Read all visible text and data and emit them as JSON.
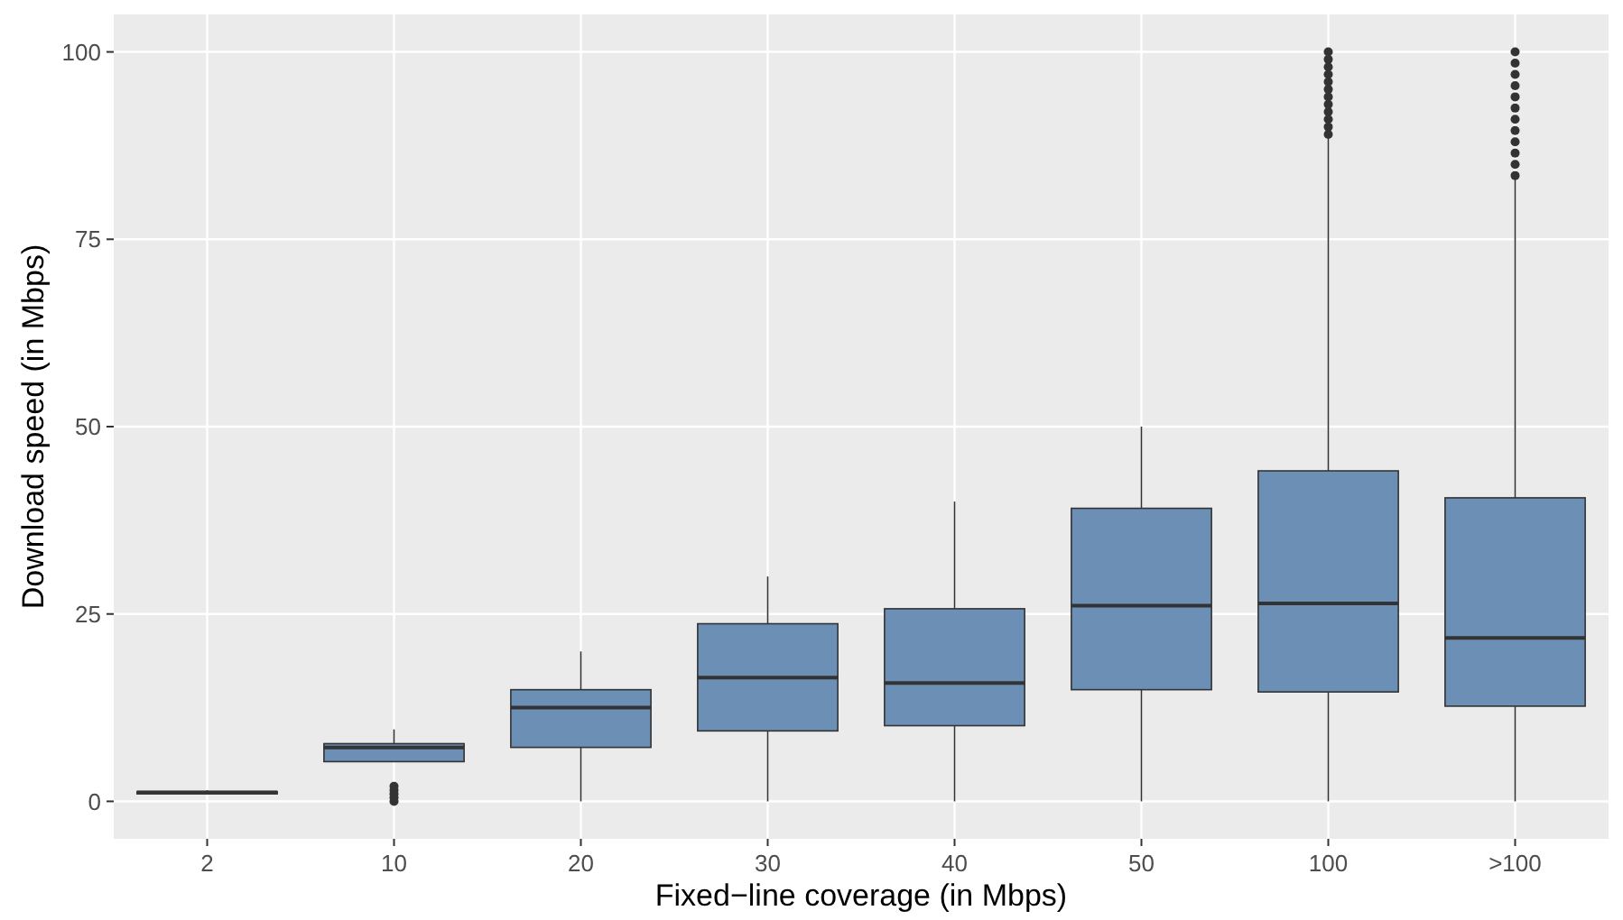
{
  "chart_data": {
    "type": "box",
    "xlabel": "Fixed−line coverage (in Mbps)",
    "ylabel": "Download speed (in Mbps)",
    "categories": [
      "2",
      "10",
      "20",
      "30",
      "40",
      "50",
      "100",
      ">100"
    ],
    "color": "#6b8fb5",
    "boxes": [
      {
        "low": 1,
        "q1": 1,
        "median": 1.2,
        "q3": 1.3,
        "high": 1.5
      },
      {
        "low": 5.3,
        "q1": 5.3,
        "median": 7.2,
        "q3": 7.7,
        "high": 9.6,
        "outliers": [
          0,
          0.5,
          1,
          1.5,
          2
        ]
      },
      {
        "low": 0,
        "q1": 7.2,
        "median": 12.5,
        "q3": 14.9,
        "high": 20
      },
      {
        "low": 0,
        "q1": 9.4,
        "median": 16.5,
        "q3": 23.7,
        "high": 30
      },
      {
        "low": 0,
        "q1": 10.1,
        "median": 15.8,
        "q3": 25.7,
        "high": 40
      },
      {
        "low": 0,
        "q1": 14.9,
        "median": 26.1,
        "q3": 39.1,
        "high": 50
      },
      {
        "low": 0,
        "q1": 14.6,
        "median": 26.4,
        "q3": 44.1,
        "high": 88.5,
        "outliers": [
          89,
          90,
          91,
          92,
          93,
          94,
          95,
          96,
          97,
          98,
          99,
          100
        ]
      },
      {
        "low": 0,
        "q1": 12.7,
        "median": 21.8,
        "q3": 40.5,
        "high": 83,
        "outliers": [
          83.5,
          85,
          86.5,
          88,
          89.5,
          91,
          92.5,
          94,
          95.5,
          97,
          98.5,
          100
        ]
      }
    ],
    "ylim": [
      -5,
      105
    ],
    "yticks": [
      0,
      25,
      50,
      75,
      100
    ],
    "grid": true
  }
}
